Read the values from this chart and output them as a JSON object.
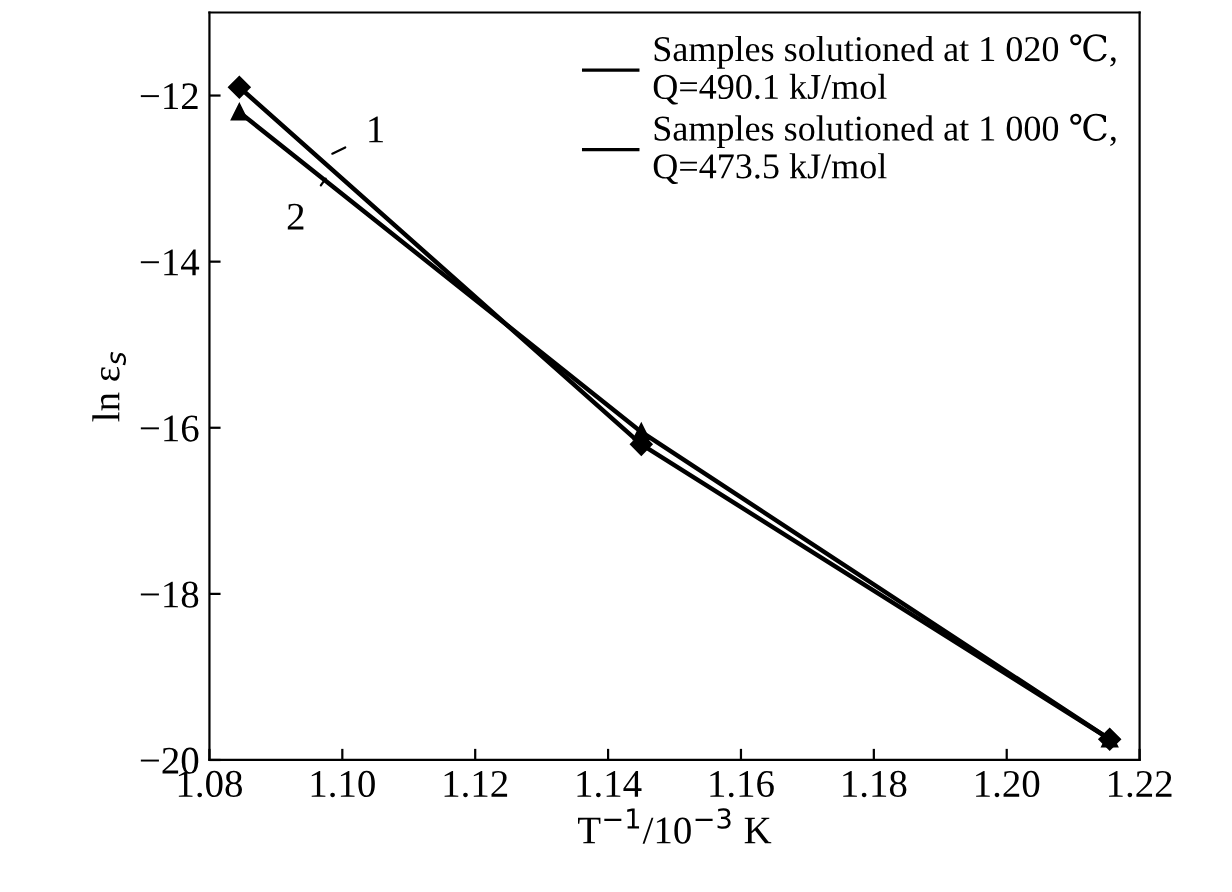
{
  "chart_data": {
    "type": "line",
    "xlabel": "T$^{−1}$/10$^{−3}$ K",
    "ylabel": "ln ε$_{s}$",
    "x": [
      1.0845,
      1.145,
      1.2155
    ],
    "series": [
      {
        "name": "Samples solutioned at 1 020 ℃,\nQ=490.1 kJ/mol",
        "color": "#000000",
        "marker": "diamond",
        "values": [
          -11.9,
          -16.2,
          -19.75
        ]
      },
      {
        "name": "Samples solutioned at 1 000 ℃,\nQ=473.5 kJ/mol",
        "color": "#000000",
        "marker": "triangle",
        "values": [
          -12.2,
          -16.05,
          -19.75
        ]
      }
    ],
    "xlim": [
      1.08,
      1.22
    ],
    "xticks": [
      1.08,
      {
        "value": 1.1,
        "label": "1.10"
      },
      1.12,
      1.14,
      1.16,
      1.18,
      {
        "value": 1.2,
        "label": "1.20"
      },
      1.22
    ],
    "ylim": [
      -20,
      -11
    ],
    "yticks": [
      {
        "value": -20,
        "label": "−20"
      },
      {
        "value": -18,
        "label": "−18"
      },
      {
        "value": -16,
        "label": "−16"
      },
      {
        "value": -14,
        "label": "−14"
      },
      {
        "value": -12,
        "label": "−12"
      }
    ],
    "annotations": [
      {
        "text": "1",
        "x": 1.0985,
        "y": -12.7
      },
      {
        "text": "2",
        "x": 1.0975,
        "y": -13.0
      }
    ],
    "legend": "top right",
    "grid": false,
    "line_style": "solid"
  }
}
